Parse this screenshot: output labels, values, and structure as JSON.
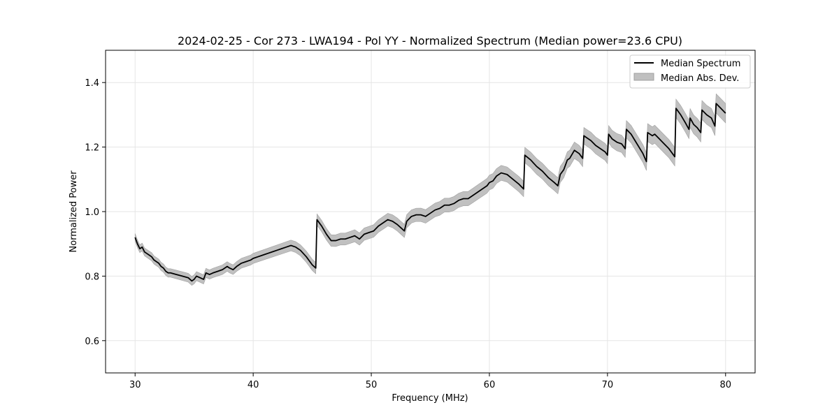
{
  "chart_data": {
    "type": "line",
    "title": "2024-02-25 - Cor 273 - LWA194 - Pol YY - Normalized Spectrum (Median power=23.6 CPU)",
    "xlabel": "Frequency (MHz)",
    "ylabel": "Normalized Power",
    "xlim": [
      27.5,
      82.5
    ],
    "ylim": [
      0.5,
      1.5
    ],
    "xticks": [
      30,
      40,
      50,
      60,
      70,
      80
    ],
    "yticks": [
      0.6,
      0.8,
      1.0,
      1.2,
      1.4
    ],
    "xtick_labels": [
      "30",
      "40",
      "50",
      "60",
      "70",
      "80"
    ],
    "ytick_labels": [
      "0.6",
      "0.8",
      "1.0",
      "1.2",
      "1.4"
    ],
    "grid": true,
    "legend_position": "top-right",
    "series": [
      {
        "name": "Median Spectrum",
        "kind": "line",
        "color": "#000000",
        "x": [
          30.0,
          30.2,
          30.4,
          30.6,
          30.8,
          31.0,
          31.2,
          31.4,
          31.6,
          31.8,
          32.0,
          32.2,
          32.4,
          32.6,
          32.8,
          33.0,
          33.5,
          34.0,
          34.5,
          34.8,
          35.0,
          35.2,
          35.5,
          35.8,
          36.0,
          36.3,
          36.6,
          37.0,
          37.4,
          37.8,
          38.0,
          38.3,
          38.6,
          39.0,
          39.4,
          39.8,
          40.0,
          40.4,
          40.8,
          41.2,
          41.6,
          42.0,
          42.4,
          42.8,
          43.2,
          43.6,
          44.0,
          44.5,
          45.0,
          45.3,
          45.4,
          45.8,
          46.2,
          46.6,
          47.0,
          47.4,
          47.8,
          48.2,
          48.6,
          49.0,
          49.4,
          49.8,
          50.2,
          50.6,
          51.0,
          51.4,
          51.8,
          52.2,
          52.5,
          52.8,
          53.0,
          53.4,
          53.8,
          54.2,
          54.6,
          55.0,
          55.4,
          55.8,
          56.2,
          56.6,
          57.0,
          57.4,
          57.8,
          58.2,
          58.6,
          59.0,
          59.4,
          59.8,
          60.0,
          60.3,
          60.6,
          61.0,
          61.5,
          62.0,
          62.5,
          62.9,
          63.0,
          63.5,
          64.0,
          64.5,
          65.0,
          65.5,
          65.8,
          66.0,
          66.3,
          66.6,
          66.8,
          67.2,
          67.6,
          67.9,
          68.0,
          68.2,
          68.6,
          69.0,
          69.4,
          69.8,
          70.0,
          70.1,
          70.4,
          70.8,
          71.2,
          71.5,
          71.6,
          72.0,
          72.5,
          73.0,
          73.3,
          73.4,
          73.8,
          74.0,
          74.4,
          74.8,
          75.2,
          75.7,
          75.8,
          76.2,
          76.6,
          76.9,
          77.0,
          77.3,
          77.6,
          77.9,
          78.0,
          78.4,
          78.8,
          79.1,
          79.2,
          79.6,
          80.0
        ],
        "y": [
          0.92,
          0.9,
          0.885,
          0.89,
          0.875,
          0.87,
          0.865,
          0.86,
          0.85,
          0.845,
          0.84,
          0.83,
          0.825,
          0.815,
          0.81,
          0.81,
          0.805,
          0.8,
          0.795,
          0.785,
          0.79,
          0.8,
          0.795,
          0.79,
          0.81,
          0.805,
          0.81,
          0.815,
          0.82,
          0.83,
          0.825,
          0.82,
          0.83,
          0.84,
          0.845,
          0.85,
          0.855,
          0.86,
          0.865,
          0.87,
          0.875,
          0.88,
          0.885,
          0.89,
          0.895,
          0.89,
          0.88,
          0.86,
          0.835,
          0.825,
          0.975,
          0.955,
          0.93,
          0.91,
          0.91,
          0.915,
          0.915,
          0.92,
          0.925,
          0.915,
          0.93,
          0.935,
          0.94,
          0.955,
          0.965,
          0.975,
          0.97,
          0.96,
          0.95,
          0.94,
          0.97,
          0.985,
          0.99,
          0.99,
          0.985,
          0.995,
          1.005,
          1.01,
          1.02,
          1.02,
          1.025,
          1.035,
          1.04,
          1.04,
          1.05,
          1.06,
          1.07,
          1.08,
          1.09,
          1.095,
          1.11,
          1.12,
          1.115,
          1.1,
          1.085,
          1.07,
          1.175,
          1.16,
          1.14,
          1.125,
          1.105,
          1.09,
          1.08,
          1.115,
          1.13,
          1.16,
          1.165,
          1.19,
          1.18,
          1.165,
          1.235,
          1.23,
          1.22,
          1.205,
          1.195,
          1.185,
          1.175,
          1.24,
          1.225,
          1.215,
          1.21,
          1.195,
          1.255,
          1.24,
          1.21,
          1.18,
          1.155,
          1.245,
          1.235,
          1.24,
          1.225,
          1.21,
          1.195,
          1.17,
          1.32,
          1.3,
          1.275,
          1.255,
          1.29,
          1.27,
          1.26,
          1.245,
          1.315,
          1.3,
          1.29,
          1.265,
          1.335,
          1.32,
          1.305
        ]
      },
      {
        "name": "Median Abs. Dev.",
        "kind": "band",
        "color": "#c0c0c0",
        "note": "shaded band around Median Spectrum (approx. +/- 0.01 to 0.03)"
      }
    ]
  },
  "colors": {
    "line": "#000000",
    "band": "#c0c0c0",
    "band_edge": "#a0a0a0",
    "grid": "#e5e5e5",
    "axis": "#000000",
    "background": "#ffffff"
  }
}
